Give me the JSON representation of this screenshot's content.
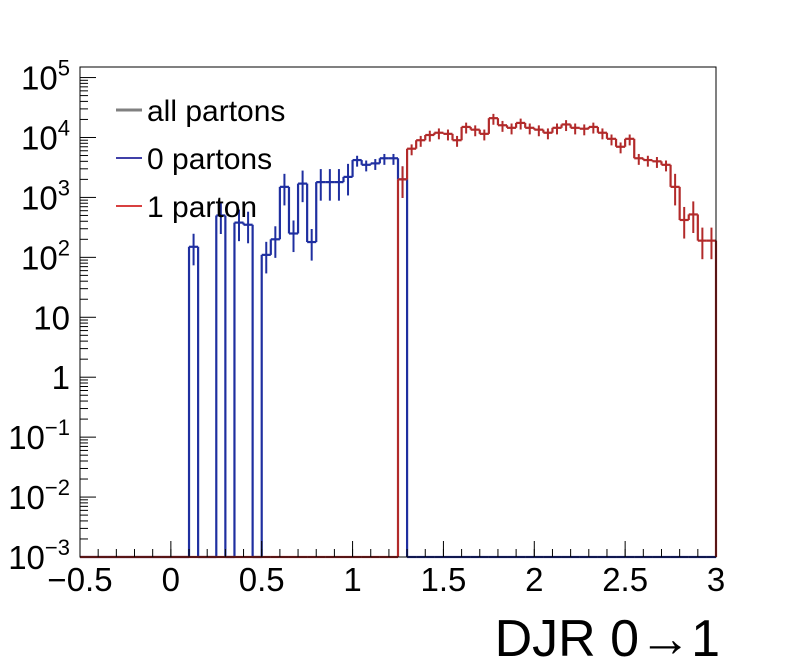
{
  "chart_data": {
    "type": "histogram",
    "xlabel": "DJR 0→1",
    "ylabel": "",
    "log_y": true,
    "xlim": [
      -0.5,
      3.0
    ],
    "ylim": [
      0.001,
      150000
    ],
    "bin_width": 0.05,
    "x_ticks": [
      {
        "value": -0.5,
        "label": "−0.5"
      },
      {
        "value": 0,
        "label": "0"
      },
      {
        "value": 0.5,
        "label": "0.5"
      },
      {
        "value": 1,
        "label": "1"
      },
      {
        "value": 1.5,
        "label": "1.5"
      },
      {
        "value": 2,
        "label": "2"
      },
      {
        "value": 2.5,
        "label": "2.5"
      },
      {
        "value": 3,
        "label": "3"
      }
    ],
    "y_ticks": [
      {
        "exp": -3,
        "base": "10",
        "sup": "−3",
        "label": ""
      },
      {
        "exp": -2,
        "base": "10",
        "sup": "−2",
        "label": ""
      },
      {
        "exp": -1,
        "base": "10",
        "sup": "−1",
        "label": ""
      },
      {
        "exp": 0,
        "base": "",
        "sup": "",
        "label": "1"
      },
      {
        "exp": 1,
        "base": "",
        "sup": "",
        "label": "10"
      },
      {
        "exp": 2,
        "base": "10",
        "sup": "2",
        "label": ""
      },
      {
        "exp": 3,
        "base": "10",
        "sup": "3",
        "label": ""
      },
      {
        "exp": 4,
        "base": "10",
        "sup": "4",
        "label": ""
      },
      {
        "exp": 5,
        "base": "10",
        "sup": "5",
        "label": ""
      }
    ],
    "legend_position": "top-left",
    "legend": [
      {
        "label": "all partons",
        "color": "#808080"
      },
      {
        "label": "0 partons",
        "color": "#00008b"
      },
      {
        "label": "1 parton",
        "color": "#cc0000"
      }
    ],
    "series": [
      {
        "name": "0 partons",
        "color": "#1f2fa0",
        "bins": [
          {
            "x0": 0.1,
            "v": 150
          },
          {
            "x0": 0.25,
            "v": 500
          },
          {
            "x0": 0.35,
            "v": 380
          },
          {
            "x0": 0.4,
            "v": 350
          },
          {
            "x0": 0.5,
            "v": 110
          },
          {
            "x0": 0.55,
            "v": 200
          },
          {
            "x0": 0.6,
            "v": 1500
          },
          {
            "x0": 0.65,
            "v": 250
          },
          {
            "x0": 0.7,
            "v": 1700
          },
          {
            "x0": 0.75,
            "v": 180
          },
          {
            "x0": 0.8,
            "v": 1800
          },
          {
            "x0": 0.85,
            "v": 1800
          },
          {
            "x0": 0.9,
            "v": 1800
          },
          {
            "x0": 0.95,
            "v": 2200
          },
          {
            "x0": 1.0,
            "v": 4200
          },
          {
            "x0": 1.05,
            "v": 3500
          },
          {
            "x0": 1.1,
            "v": 3700
          },
          {
            "x0": 1.15,
            "v": 4500
          },
          {
            "x0": 1.2,
            "v": 4500
          },
          {
            "x0": 1.25,
            "v": 2000
          }
        ]
      },
      {
        "name": "1 parton",
        "color": "#b22a2a",
        "bins": [
          {
            "x0": 1.25,
            "v": 2000
          },
          {
            "x0": 1.3,
            "v": 6500
          },
          {
            "x0": 1.35,
            "v": 9000
          },
          {
            "x0": 1.4,
            "v": 11000
          },
          {
            "x0": 1.45,
            "v": 12000
          },
          {
            "x0": 1.5,
            "v": 11500
          },
          {
            "x0": 1.55,
            "v": 9000
          },
          {
            "x0": 1.6,
            "v": 15000
          },
          {
            "x0": 1.65,
            "v": 13500
          },
          {
            "x0": 1.7,
            "v": 11500
          },
          {
            "x0": 1.75,
            "v": 21000
          },
          {
            "x0": 1.8,
            "v": 16000
          },
          {
            "x0": 1.85,
            "v": 14500
          },
          {
            "x0": 1.9,
            "v": 17500
          },
          {
            "x0": 1.95,
            "v": 14500
          },
          {
            "x0": 2.0,
            "v": 13500
          },
          {
            "x0": 2.05,
            "v": 12000
          },
          {
            "x0": 2.1,
            "v": 14500
          },
          {
            "x0": 2.15,
            "v": 16500
          },
          {
            "x0": 2.2,
            "v": 14500
          },
          {
            "x0": 2.25,
            "v": 14000
          },
          {
            "x0": 2.3,
            "v": 15000
          },
          {
            "x0": 2.35,
            "v": 12000
          },
          {
            "x0": 2.4,
            "v": 9500
          },
          {
            "x0": 2.45,
            "v": 7000
          },
          {
            "x0": 2.5,
            "v": 9500
          },
          {
            "x0": 2.55,
            "v": 4500
          },
          {
            "x0": 2.6,
            "v": 4200
          },
          {
            "x0": 2.65,
            "v": 4000
          },
          {
            "x0": 2.7,
            "v": 3500
          },
          {
            "x0": 2.75,
            "v": 1500
          },
          {
            "x0": 2.8,
            "v": 420
          },
          {
            "x0": 2.85,
            "v": 520
          },
          {
            "x0": 2.9,
            "v": 190
          },
          {
            "x0": 2.95,
            "v": 190
          }
        ]
      }
    ]
  }
}
